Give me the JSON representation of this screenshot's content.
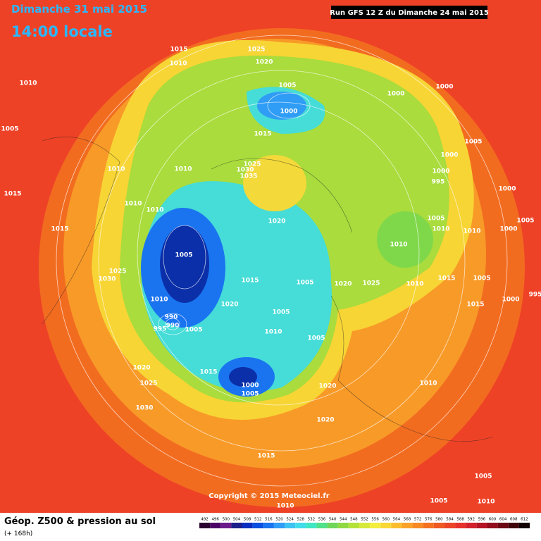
{
  "header": {
    "title": "Dimanche 31 mai 2015",
    "subtitle": "14:00 locale",
    "run": "Run GFS 12 Z du Dimanche 24 mai 2015"
  },
  "map": {
    "isobar_labels": [
      1015,
      1025,
      1010,
      1020,
      1010,
      1005,
      1000,
      1000,
      1000,
      1005,
      1015,
      1005,
      1000,
      1010,
      1010,
      1025,
      1030,
      1035,
      1000,
      995,
      1000,
      1015,
      1010,
      1010,
      1020,
      1005,
      1010,
      1015,
      1010,
      1000,
      1005,
      1005,
      1010,
      1025,
      1030,
      1015,
      1005,
      1020,
      1025,
      1010,
      1015,
      1005,
      995,
      1000,
      1015,
      1010,
      1020,
      1005,
      990,
      990,
      995,
      1005,
      1010,
      1005,
      1020,
      1015,
      1025,
      1000,
      1005,
      1020,
      1010,
      1030,
      1020,
      1015,
      1005,
      1005,
      1010,
      1010
    ]
  },
  "footer": {
    "copyright": "Copyright © 2015 Meteociel.fr",
    "product": "Géop. Z500 & pression au sol",
    "lead": "(+ 168h)"
  },
  "legend": {
    "values": [
      492,
      496,
      500,
      504,
      508,
      512,
      516,
      520,
      524,
      528,
      532,
      536,
      540,
      544,
      548,
      552,
      556,
      560,
      564,
      568,
      572,
      576,
      580,
      584,
      588,
      592,
      596,
      600,
      604,
      608,
      612
    ],
    "colors": [
      "#2a0030",
      "#4a0066",
      "#6b1a8c",
      "#1c1f8a",
      "#0a2fbf",
      "#0b4fe0",
      "#1a74f0",
      "#2f9cf5",
      "#3cc3f2",
      "#40dcea",
      "#3fe6c3",
      "#4fe08a",
      "#6fd65a",
      "#8fd843",
      "#b3e23a",
      "#d7ea3a",
      "#f3ee3e",
      "#f9d836",
      "#fbbd2f",
      "#f9a229",
      "#f68a24",
      "#f3711f",
      "#ef5a22",
      "#ec4526",
      "#e6322a",
      "#d4202a",
      "#b61424",
      "#930d1c",
      "#6e0814",
      "#40040a",
      "#100000"
    ]
  }
}
